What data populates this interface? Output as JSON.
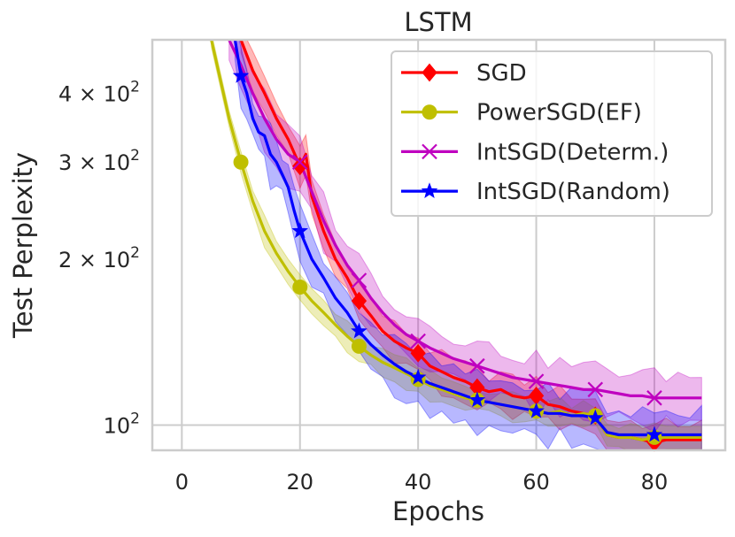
{
  "chart_data": {
    "type": "line",
    "title": "LSTM",
    "xlabel": "Epochs",
    "ylabel": "Test Perplexity",
    "xlim": [
      -5,
      92
    ],
    "ylim": [
      90,
      500
    ],
    "yscale": "log",
    "grid": true,
    "legend_position": "top-right",
    "x_ticks": [
      0,
      20,
      40,
      60,
      80
    ],
    "y_ticks": [
      {
        "value": 100,
        "base": "10",
        "exp": "2",
        "mult": ""
      },
      {
        "value": 200,
        "base": "10",
        "exp": "2",
        "mult": "2 × "
      },
      {
        "value": 300,
        "base": "10",
        "exp": "2",
        "mult": "3 × "
      },
      {
        "value": 400,
        "base": "10",
        "exp": "2",
        "mult": "4 × "
      }
    ],
    "series": [
      {
        "name": "SGD",
        "color": "#ff0000",
        "marker": "diamond",
        "marker_x": [
          20,
          30,
          40,
          50,
          60,
          70,
          80
        ],
        "x": [
          10,
          12,
          14,
          16,
          18,
          20,
          21,
          22,
          24,
          26,
          28,
          30,
          32,
          34,
          36,
          38,
          40,
          42,
          44,
          46,
          48,
          50,
          52,
          54,
          56,
          58,
          60,
          62,
          64,
          66,
          68,
          70,
          72,
          74,
          76,
          78,
          80,
          82,
          84,
          86,
          88
        ],
        "values": [
          500,
          440,
          400,
          360,
          330,
          295,
          310,
          260,
          225,
          200,
          185,
          168,
          158,
          148,
          142,
          138,
          135,
          128,
          125,
          122,
          120,
          117,
          115,
          116,
          113,
          112,
          113,
          109,
          108,
          106,
          105,
          104,
          96,
          95,
          95,
          94,
          93,
          94,
          94,
          94,
          94
        ],
        "band": 0.07
      },
      {
        "name": "PowerSGD(EF)",
        "color": "#bfbf00",
        "marker": "circle",
        "marker_x": [
          10,
          20,
          30,
          40,
          50,
          60,
          70,
          80
        ],
        "x": [
          5,
          8,
          10,
          12,
          14,
          16,
          18,
          20,
          22,
          24,
          26,
          28,
          30,
          32,
          34,
          36,
          38,
          40,
          42,
          44,
          46,
          48,
          50,
          52,
          54,
          56,
          58,
          60,
          62,
          64,
          66,
          68,
          70,
          72,
          74,
          76,
          78,
          80,
          82,
          84,
          86,
          88
        ],
        "values": [
          500,
          360,
          300,
          255,
          225,
          205,
          190,
          178,
          168,
          160,
          152,
          145,
          139,
          134,
          130,
          127,
          124,
          121,
          118,
          116,
          114,
          112,
          111,
          110,
          109,
          108,
          107,
          106,
          105,
          106,
          104,
          105,
          104,
          96,
          95,
          95,
          94,
          95,
          95,
          95,
          95,
          95
        ],
        "band": 0.05
      },
      {
        "name": "IntSGD(Determ.)",
        "color": "#bf00bf",
        "marker": "x",
        "marker_x": [
          20,
          30,
          40,
          50,
          60,
          70,
          80
        ],
        "x": [
          8,
          10,
          12,
          14,
          16,
          18,
          20,
          22,
          24,
          26,
          28,
          30,
          32,
          34,
          36,
          38,
          40,
          42,
          44,
          46,
          48,
          50,
          52,
          54,
          56,
          58,
          60,
          62,
          64,
          66,
          68,
          70,
          72,
          74,
          76,
          78,
          80,
          82,
          84,
          86,
          88
        ],
        "values": [
          500,
          450,
          400,
          360,
          330,
          310,
          300,
          265,
          235,
          212,
          195,
          183,
          170,
          160,
          152,
          146,
          142,
          138,
          135,
          132,
          130,
          128,
          126,
          124,
          122,
          121,
          120,
          119,
          118,
          117,
          116,
          116,
          115,
          114,
          113,
          113,
          112,
          112,
          112,
          112,
          112
        ],
        "band": 0.1
      },
      {
        "name": "IntSGD(Random)",
        "color": "#0000ff",
        "marker": "star",
        "marker_x": [
          10,
          20,
          30,
          40,
          50,
          60,
          70,
          80
        ],
        "x": [
          9,
          10,
          11,
          12,
          13,
          14,
          15,
          16,
          17,
          18,
          19,
          20,
          22,
          24,
          26,
          28,
          30,
          32,
          34,
          36,
          38,
          40,
          42,
          44,
          46,
          48,
          50,
          52,
          54,
          56,
          58,
          60,
          62,
          64,
          66,
          68,
          70,
          72,
          74,
          76,
          78,
          80,
          82,
          84,
          86,
          88
        ],
        "values": [
          500,
          430,
          400,
          360,
          340,
          335,
          310,
          300,
          285,
          270,
          245,
          225,
          200,
          185,
          170,
          160,
          148,
          140,
          134,
          129,
          125,
          122,
          119,
          117,
          115,
          113,
          111,
          110,
          109,
          108,
          107,
          106,
          105,
          105,
          104,
          104,
          103,
          97,
          96,
          96,
          96,
          96,
          96,
          96,
          96,
          96
        ],
        "band": 0.1
      }
    ]
  }
}
